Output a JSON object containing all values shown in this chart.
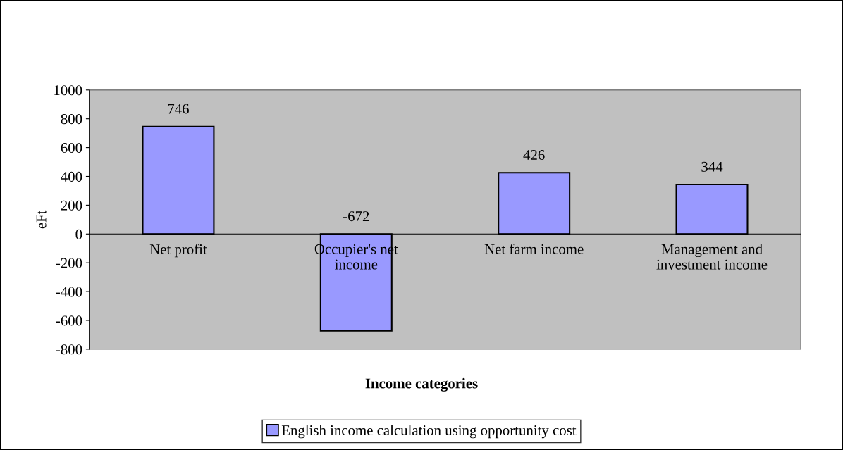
{
  "chart_data": {
    "type": "bar",
    "xlabel": "Income categories",
    "ylabel": "eFt",
    "categories": [
      "Net profit",
      "Occupier's net income",
      "Net farm income",
      "Management and investment income"
    ],
    "series": [
      {
        "name": "English income calculation using opportunity cost",
        "color": "#9999ff",
        "values": [
          746,
          -672,
          426,
          344
        ]
      }
    ],
    "ylim": [
      -800,
      1000
    ],
    "yticks": [
      -800,
      -600,
      -400,
      -200,
      0,
      200,
      400,
      600,
      800,
      1000
    ],
    "data_labels": true,
    "grid": false,
    "legend": "bottom"
  }
}
